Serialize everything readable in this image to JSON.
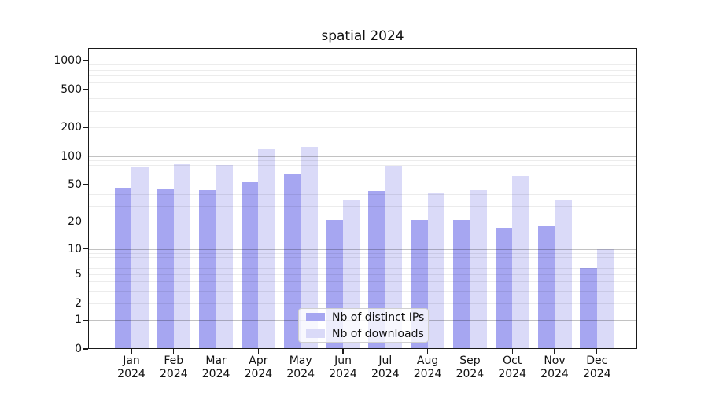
{
  "chart_data": {
    "type": "bar",
    "title": "spatial 2024",
    "categories": [
      "Jan",
      "Feb",
      "Mar",
      "Apr",
      "May",
      "Jun",
      "Jul",
      "Aug",
      "Sep",
      "Oct",
      "Nov",
      "Dec"
    ],
    "category_second_line": "2024",
    "series": [
      {
        "name": "Nb of distinct IPs",
        "color": "#a6a6f1",
        "values": [
          46,
          45,
          44,
          54,
          65,
          21,
          43,
          21,
          21,
          17,
          18,
          6
        ]
      },
      {
        "name": "Nb of downloads",
        "color": "#dadaf8",
        "values": [
          76,
          83,
          81,
          119,
          124,
          35,
          79,
          41,
          44,
          62,
          34,
          10
        ]
      }
    ],
    "yscale": "log1p",
    "yticks": [
      0,
      1,
      2,
      5,
      10,
      20,
      50,
      100,
      200,
      500,
      1000
    ],
    "ylim": [
      0,
      1340
    ],
    "grid": "on",
    "legend_position": "lower center"
  },
  "colors": {
    "background": "#ffffff",
    "frame": "#1a1a1a",
    "major_gridline": "#c3c3c3",
    "minor_gridline": "#ececec",
    "text": "#111111"
  }
}
